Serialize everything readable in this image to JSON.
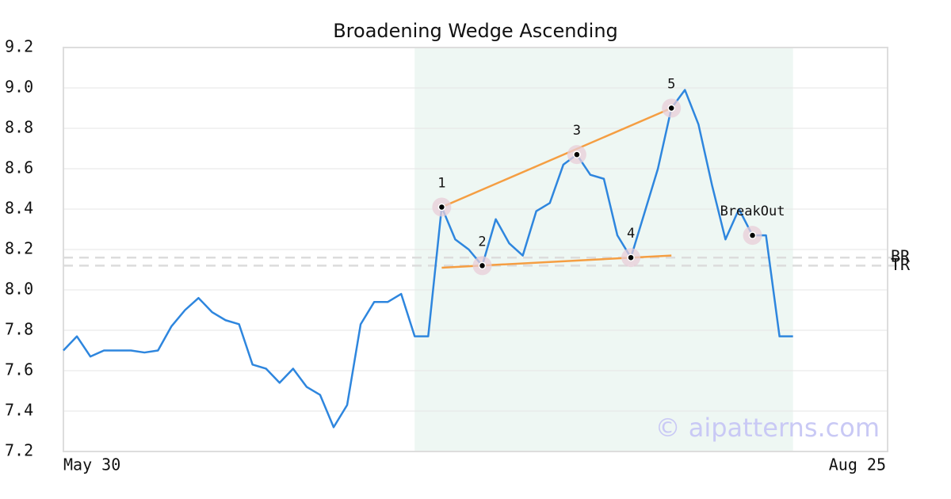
{
  "chart_data": {
    "type": "line",
    "title": "Broadening Wedge Ascending",
    "x": [
      0,
      1,
      2,
      3,
      4,
      5,
      6,
      7,
      8,
      9,
      10,
      11,
      12,
      13,
      14,
      15,
      16,
      17,
      18,
      19,
      20,
      21,
      22,
      23,
      24,
      25,
      26,
      27,
      28,
      29,
      30,
      31,
      32,
      33,
      34,
      35,
      36,
      37,
      38,
      39,
      40,
      41,
      42,
      43,
      44,
      45,
      46,
      47,
      48,
      49,
      50,
      51,
      52,
      53,
      54
    ],
    "series": [
      {
        "color": "#2e86de",
        "values": [
          7.7,
          7.77,
          7.67,
          7.7,
          7.7,
          7.7,
          7.69,
          7.7,
          7.82,
          7.9,
          7.96,
          7.89,
          7.85,
          7.83,
          7.63,
          7.61,
          7.54,
          7.61,
          7.52,
          7.48,
          7.32,
          7.43,
          7.83,
          7.94,
          7.94,
          7.98,
          7.77,
          7.77,
          8.41,
          8.25,
          8.2,
          8.12,
          8.35,
          8.23,
          8.17,
          8.39,
          8.43,
          8.62,
          8.67,
          8.57,
          8.55,
          8.27,
          8.16,
          8.38,
          8.6,
          8.9,
          8.99,
          8.82,
          8.52,
          8.25,
          8.4,
          8.27,
          8.27,
          7.77,
          7.77
        ]
      }
    ],
    "xlim": [
      0,
      61
    ],
    "xticks": [
      {
        "value": 0,
        "label": "May 30"
      },
      {
        "value": 61,
        "label": "Aug 25"
      }
    ],
    "ylim": [
      7.2,
      9.2
    ],
    "yticks": [
      7.2,
      7.4,
      7.6,
      7.8,
      {
        "value": 8,
        "label": "8.0"
      },
      8.2,
      8.4,
      8.6,
      8.8,
      {
        "value": 9,
        "label": "9.0"
      },
      9.2
    ],
    "grid": true,
    "highlight": {
      "x": [
        26,
        54
      ],
      "color": "#eef7f3"
    },
    "trendlines": [
      {
        "x": [
          28,
          45
        ],
        "y": [
          8.41,
          8.9
        ],
        "color": "#f59e42"
      },
      {
        "x": [
          28,
          45
        ],
        "y": [
          8.11,
          8.17
        ],
        "color": "#f59e42"
      }
    ],
    "hlines": [
      {
        "y": 8.16,
        "label": "BR"
      },
      {
        "y": 8.12,
        "label": "TR"
      }
    ],
    "annotations": [
      {
        "x": 28,
        "y": 8.41,
        "label": "1"
      },
      {
        "x": 31,
        "y": 8.12,
        "label": "2"
      },
      {
        "x": 38,
        "y": 8.67,
        "label": "3"
      },
      {
        "x": 42,
        "y": 8.16,
        "label": "4"
      },
      {
        "x": 45,
        "y": 8.9,
        "label": "5"
      },
      {
        "x": 51,
        "y": 8.27,
        "label": "BreakOut"
      }
    ],
    "watermark": "© aipatterns.com"
  }
}
